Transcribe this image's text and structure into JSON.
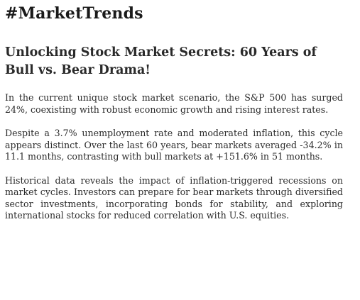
{
  "article": {
    "hashtag": "#MarketTrends",
    "headline": "Unlocking Stock Market Secrets: 60 Years of Bull vs. Bear Drama!",
    "paragraphs": [
      "In the current unique stock market scenario, the S&P 500 has surged 24%, coexisting with robust economic growth and rising interest rates.",
      "Despite a 3.7% unemployment rate and moderated inflation, this cycle appears distinct. Over the last 60 years, bear markets averaged -34.2% in 11.1 months, contrasting with bull markets at +151.6% in 51 months.",
      "Historical data reveals the impact of inflation-triggered recessions on market cycles. Investors can prepare for bear markets through diversified sector investments, incorporating bonds for stability, and exploring international stocks for reduced correlation with U.S. equities."
    ]
  }
}
